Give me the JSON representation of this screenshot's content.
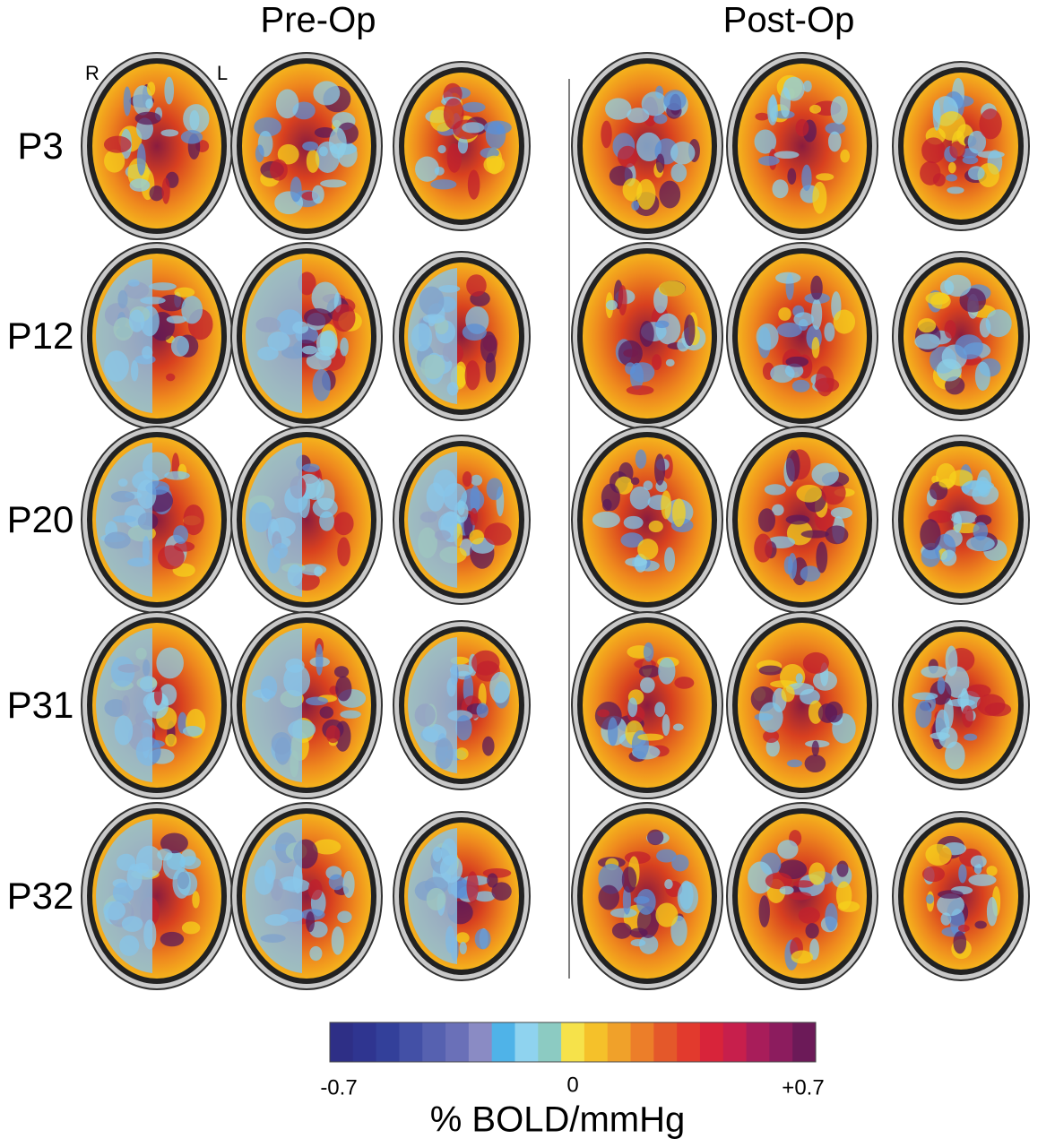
{
  "headers": [
    "Pre-Op",
    "Post-Op"
  ],
  "orientation": {
    "right": "R",
    "left": "L"
  },
  "rows": [
    {
      "label": "P3"
    },
    {
      "label": "P12"
    },
    {
      "label": "P20"
    },
    {
      "label": "P31"
    },
    {
      "label": "P32"
    }
  ],
  "colorbar": {
    "ticks": [
      "-0.7",
      "0",
      "+0.7"
    ],
    "label": "% BOLD/mmHg"
  }
}
